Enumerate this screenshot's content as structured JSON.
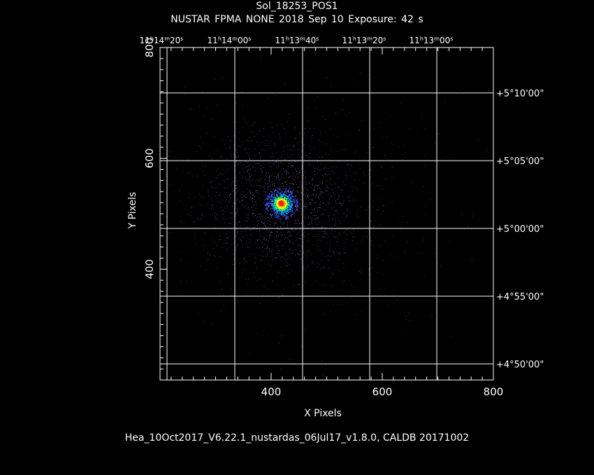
{
  "title": "Sol_18253_POS1",
  "subtitle": "NUSTAR FPMA NONE   2018 Sep 10    Exposure: 42 s",
  "footer": "Hea_10Oct2017_V6.22.1_nustardas_06Jul17_v1.8.0, CALDB 20171002",
  "chart_data": {
    "type": "heatmap",
    "xlabel": "X Pixels",
    "ylabel": "Y Pixels",
    "xlim": [
      200,
      800
    ],
    "ylim": [
      200,
      800
    ],
    "x_ticks": [
      400,
      600,
      800
    ],
    "y_ticks": [
      400,
      600,
      800
    ],
    "ra_ticks": [
      {
        "h": "11",
        "m": "14",
        "s": "20"
      },
      {
        "h": "11",
        "m": "14",
        "s": "00"
      },
      {
        "h": "11",
        "m": "13",
        "s": "40"
      },
      {
        "h": "11",
        "m": "13",
        "s": "20"
      },
      {
        "h": "11",
        "m": "13",
        "s": "00"
      }
    ],
    "dec_ticks": [
      "+5°10'00\"",
      "+5°05'00\"",
      "+5°00'00\"",
      "+4°55'00\"",
      "+4°50'00\""
    ],
    "source": {
      "x": 418,
      "y": 519
    },
    "grid": true
  }
}
